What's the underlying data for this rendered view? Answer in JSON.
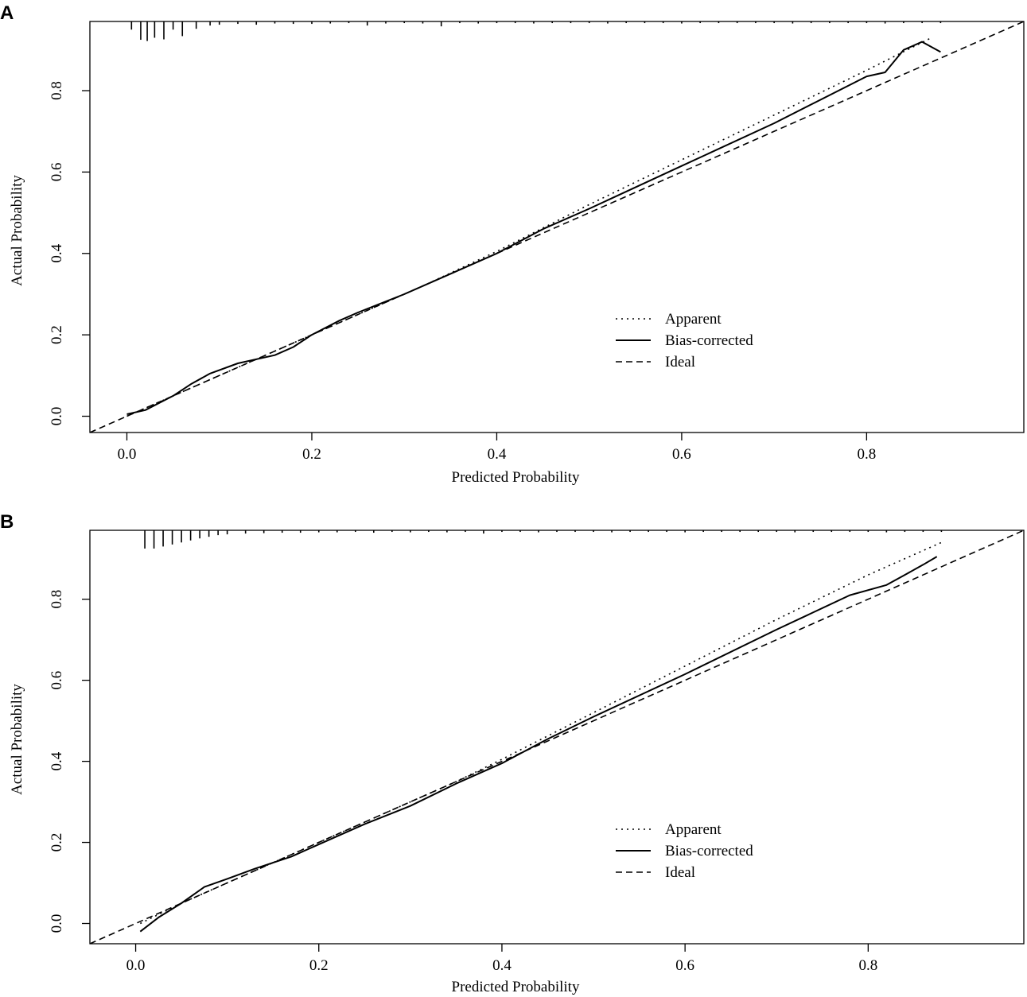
{
  "colors": {
    "line": "#000000",
    "background": "#ffffff"
  },
  "chart_data": [
    {
      "type": "line",
      "panel": "A",
      "xlabel": "Predicted Probability",
      "ylabel": "Actual Probability",
      "xlim": [
        -0.04,
        0.97
      ],
      "ylim": [
        -0.04,
        0.97
      ],
      "xticks": [
        0.0,
        0.2,
        0.4,
        0.6,
        0.8
      ],
      "yticks": [
        0.0,
        0.2,
        0.4,
        0.6,
        0.8
      ],
      "xtick_labels": [
        "0.0",
        "0.2",
        "0.4",
        "0.6",
        "0.8"
      ],
      "ytick_labels": [
        "0.0",
        "0.2",
        "0.4",
        "0.6",
        "0.8"
      ],
      "legend_position": "lower-right",
      "grid": false,
      "series": [
        {
          "name": "Apparent",
          "style": "dotted",
          "x": [
            0.0,
            0.02,
            0.06,
            0.1,
            0.15,
            0.2,
            0.26,
            0.32,
            0.4,
            0.5,
            0.6,
            0.7,
            0.8,
            0.87
          ],
          "y": [
            0.0,
            0.02,
            0.06,
            0.1,
            0.15,
            0.2,
            0.26,
            0.32,
            0.405,
            0.52,
            0.63,
            0.74,
            0.85,
            0.93
          ]
        },
        {
          "name": "Bias-corrected",
          "style": "solid",
          "x": [
            0.0,
            0.02,
            0.05,
            0.07,
            0.09,
            0.12,
            0.16,
            0.18,
            0.2,
            0.23,
            0.25,
            0.3,
            0.35,
            0.4,
            0.45,
            0.5,
            0.6,
            0.7,
            0.8,
            0.82,
            0.84,
            0.86,
            0.88
          ],
          "y": [
            0.005,
            0.015,
            0.05,
            0.08,
            0.105,
            0.13,
            0.15,
            0.17,
            0.2,
            0.235,
            0.255,
            0.3,
            0.35,
            0.4,
            0.46,
            0.51,
            0.615,
            0.72,
            0.835,
            0.845,
            0.9,
            0.92,
            0.895
          ]
        },
        {
          "name": "Ideal",
          "style": "dashed",
          "x": [
            -0.04,
            0.97
          ],
          "y": [
            -0.04,
            0.97
          ]
        }
      ],
      "rug": {
        "x": [
          0.005,
          0.015,
          0.022,
          0.03,
          0.04,
          0.05,
          0.06,
          0.075,
          0.09,
          0.1,
          0.12,
          0.14,
          0.16,
          0.18,
          0.2,
          0.22,
          0.24,
          0.26,
          0.28,
          0.3,
          0.32,
          0.34,
          0.36,
          0.38,
          0.4,
          0.42,
          0.44,
          0.46,
          0.48,
          0.5,
          0.52,
          0.54,
          0.56,
          0.58,
          0.6,
          0.62,
          0.64,
          0.66,
          0.68,
          0.7,
          0.72,
          0.74,
          0.76,
          0.78,
          0.8,
          0.82,
          0.84,
          0.86,
          0.88
        ],
        "h": [
          0.02,
          0.045,
          0.048,
          0.04,
          0.044,
          0.02,
          0.036,
          0.018,
          0.01,
          0.008,
          0.006,
          0.008,
          0.005,
          0.006,
          0.006,
          0.005,
          0.004,
          0.01,
          0.005,
          0.004,
          0.005,
          0.012,
          0.004,
          0.005,
          0.004,
          0.004,
          0.005,
          0.004,
          0.004,
          0.004,
          0.005,
          0.004,
          0.004,
          0.004,
          0.005,
          0.004,
          0.004,
          0.004,
          0.004,
          0.004,
          0.005,
          0.004,
          0.004,
          0.004,
          0.004,
          0.005,
          0.004,
          0.004,
          0.004
        ]
      }
    },
    {
      "type": "line",
      "panel": "B",
      "xlabel": "Predicted Probability",
      "ylabel": "Actual Probability",
      "xlim": [
        -0.05,
        0.97
      ],
      "ylim": [
        -0.05,
        0.97
      ],
      "xticks": [
        0.0,
        0.2,
        0.4,
        0.6,
        0.8
      ],
      "yticks": [
        0.0,
        0.2,
        0.4,
        0.6,
        0.8
      ],
      "xtick_labels": [
        "0.0",
        "0.2",
        "0.4",
        "0.6",
        "0.8"
      ],
      "ytick_labels": [
        "0.0",
        "0.2",
        "0.4",
        "0.6",
        "0.8"
      ],
      "legend_position": "lower-right",
      "grid": false,
      "series": [
        {
          "name": "Apparent",
          "style": "dotted",
          "x": [
            0.005,
            0.05,
            0.1,
            0.15,
            0.2,
            0.25,
            0.3,
            0.35,
            0.4,
            0.5,
            0.6,
            0.7,
            0.8,
            0.88
          ],
          "y": [
            0.0,
            0.05,
            0.1,
            0.15,
            0.2,
            0.25,
            0.3,
            0.35,
            0.405,
            0.52,
            0.635,
            0.75,
            0.86,
            0.94
          ]
        },
        {
          "name": "Bias-corrected",
          "style": "solid",
          "x": [
            0.005,
            0.025,
            0.05,
            0.075,
            0.1,
            0.13,
            0.17,
            0.2,
            0.25,
            0.3,
            0.35,
            0.4,
            0.45,
            0.5,
            0.6,
            0.7,
            0.78,
            0.82,
            0.84,
            0.86,
            0.875
          ],
          "y": [
            -0.02,
            0.015,
            0.05,
            0.09,
            0.11,
            0.135,
            0.165,
            0.195,
            0.245,
            0.29,
            0.345,
            0.395,
            0.455,
            0.51,
            0.615,
            0.725,
            0.81,
            0.835,
            0.86,
            0.885,
            0.905
          ]
        },
        {
          "name": "Ideal",
          "style": "dashed",
          "x": [
            -0.05,
            0.97
          ],
          "y": [
            -0.05,
            0.97
          ]
        }
      ],
      "rug": {
        "x": [
          0.01,
          0.02,
          0.03,
          0.04,
          0.05,
          0.06,
          0.07,
          0.08,
          0.09,
          0.1,
          0.12,
          0.14,
          0.16,
          0.18,
          0.2,
          0.22,
          0.24,
          0.26,
          0.28,
          0.3,
          0.32,
          0.34,
          0.36,
          0.38,
          0.4,
          0.42,
          0.44,
          0.46,
          0.48,
          0.5,
          0.52,
          0.54,
          0.56,
          0.58,
          0.6,
          0.62,
          0.64,
          0.66,
          0.68,
          0.7,
          0.72,
          0.74,
          0.76,
          0.78,
          0.8,
          0.82,
          0.84,
          0.86,
          0.88
        ],
        "h": [
          0.045,
          0.045,
          0.04,
          0.035,
          0.03,
          0.025,
          0.02,
          0.016,
          0.012,
          0.01,
          0.008,
          0.007,
          0.006,
          0.006,
          0.005,
          0.005,
          0.004,
          0.006,
          0.004,
          0.005,
          0.004,
          0.005,
          0.004,
          0.008,
          0.004,
          0.004,
          0.005,
          0.004,
          0.004,
          0.004,
          0.005,
          0.004,
          0.004,
          0.004,
          0.005,
          0.004,
          0.004,
          0.004,
          0.004,
          0.004,
          0.005,
          0.004,
          0.004,
          0.004,
          0.004,
          0.005,
          0.004,
          0.004,
          0.004
        ]
      }
    }
  ]
}
